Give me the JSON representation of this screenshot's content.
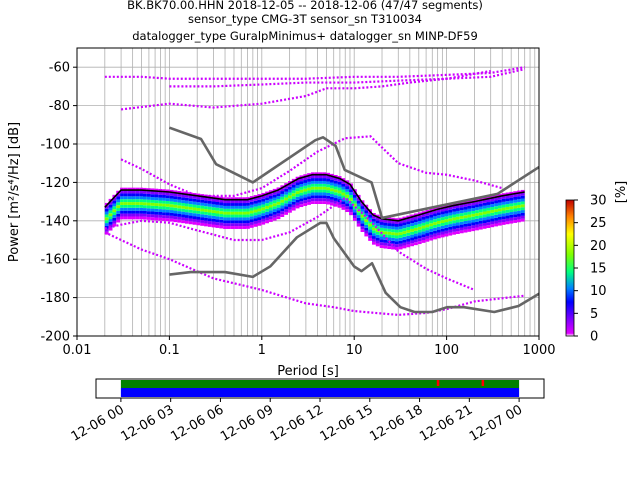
{
  "title_lines": [
    "BK.BK70.00.HHN   2018-12-05 -- 2018-12-06  (47/47 segments)",
    "sensor_type CMG-3T sensor_sn T310034",
    "datalogger_type GuralpMinimus+ datalogger_sn MINP-DF59"
  ],
  "colorbar": {
    "label": "[%]",
    "ticks": [
      "0",
      "5",
      "10",
      "15",
      "20",
      "25",
      "30"
    ],
    "range": [
      0,
      30
    ]
  },
  "chart_data": [
    {
      "type": "heatmap",
      "title": "BK.BK70.00.HHN   2018-12-05 -- 2018-12-06  (47/47 segments)",
      "xlabel": "Period [s]",
      "ylabel": "Power [m²/s⁴/Hz] [dB]",
      "xscale": "log",
      "xlim": [
        0.01,
        1000
      ],
      "ylim": [
        -200,
        -50
      ],
      "x_tick_labels": [
        "0.01",
        "0.1",
        "1",
        "10",
        "100",
        "1000"
      ],
      "y_tick_labels": [
        "-60",
        "-80",
        "-100",
        "-120",
        "-140",
        "-160",
        "-180",
        "-200"
      ],
      "y_ticks": [
        -60,
        -80,
        -100,
        -120,
        -140,
        -160,
        -180,
        -200
      ],
      "x_ticks": [
        0.01,
        0.1,
        1,
        10,
        100,
        1000
      ],
      "grid": true,
      "colormap": "pqlx",
      "series": [
        {
          "role": "mean",
          "color": "#000000",
          "x": [
            0.02,
            0.03,
            0.05,
            0.1,
            0.2,
            0.4,
            0.7,
            1.0,
            1.5,
            2.5,
            3.5,
            5,
            7,
            9,
            12,
            16,
            20,
            30,
            50,
            80,
            120,
            200,
            400,
            700
          ],
          "y": [
            -133,
            -124,
            -124,
            -125,
            -127,
            -129,
            -129,
            -127,
            -124,
            -118,
            -116,
            -116,
            -118,
            -121,
            -130,
            -137,
            -139,
            -140,
            -137,
            -134,
            -132,
            -130,
            -127,
            -125
          ]
        },
        {
          "role": "new-high-noise-model",
          "color": "#666666",
          "x": [
            0.1,
            0.22,
            0.32,
            0.8,
            3.8,
            4.6,
            6.3,
            7.9,
            15.4,
            20,
            354.8,
            1000
          ],
          "y": [
            -91.5,
            -97.4,
            -110.5,
            -120,
            -98,
            -96.5,
            -101,
            -113.5,
            -120,
            -138.5,
            -126,
            -112
          ]
        },
        {
          "role": "new-low-noise-model",
          "color": "#666666",
          "x": [
            0.1,
            0.17,
            0.4,
            0.8,
            1.24,
            2.4,
            4.3,
            5.0,
            6.0,
            10.0,
            12.0,
            15.6,
            21.9,
            31.6,
            45,
            70,
            101,
            154,
            328,
            600,
            1000
          ],
          "y": [
            -168,
            -166.7,
            -166.7,
            -169.2,
            -163.7,
            -148.6,
            -141.1,
            -141.1,
            -149,
            -163.8,
            -166.2,
            -162.1,
            -177.5,
            -185,
            -187.5,
            -187.5,
            -185,
            -185,
            -187.5,
            -184.4,
            -178
          ]
        }
      ],
      "percentile_bands": [
        {
          "color": "#cc00ff",
          "x": [
            0.02,
            0.03,
            0.05,
            0.1,
            0.3,
            1,
            3,
            10,
            30,
            100,
            300,
            700
          ],
          "y": [
            -65,
            -65,
            -65,
            -66,
            -66,
            -66,
            -66,
            -65,
            -65,
            -64,
            -63,
            -60
          ]
        },
        {
          "color": "#cc00ff",
          "x": [
            0.1,
            0.3,
            1,
            3,
            10,
            30,
            100,
            300,
            700
          ],
          "y": [
            -70,
            -70,
            -69,
            -68,
            -68,
            -67,
            -66,
            -65,
            -61
          ]
        },
        {
          "color": "#cc00ff",
          "x": [
            0.03,
            0.1,
            0.3,
            1,
            3,
            5,
            10,
            20,
            40,
            100,
            300
          ],
          "y": [
            -82,
            -79,
            -81,
            -79,
            -75,
            -71,
            -71,
            -70,
            -68,
            -66,
            -62
          ]
        },
        {
          "color": "#cc00ff",
          "x": [
            0.02,
            0.03,
            0.05,
            0.1,
            0.3,
            1,
            3,
            6,
            10,
            17,
            30,
            60,
            100,
            200,
            700
          ],
          "y": [
            -146,
            -150,
            -155,
            -160,
            -170,
            -176,
            -183,
            -185,
            -187,
            -188,
            -189,
            -188,
            -186,
            -182,
            -179
          ]
        },
        {
          "color": "#cc00ff",
          "x": [
            0.02,
            0.03,
            0.05,
            0.1,
            0.2,
            0.5,
            1,
            2,
            4,
            8,
            15,
            30,
            60,
            100,
            200
          ],
          "y": [
            -144,
            -142,
            -140,
            -141,
            -145,
            -150,
            -150,
            -146,
            -138,
            -128,
            -140,
            -156,
            -165,
            -170,
            -176
          ]
        },
        {
          "color": "#cc00ff",
          "x": [
            0.03,
            0.05,
            0.1,
            0.2,
            0.5,
            1,
            2,
            4,
            8,
            15,
            30,
            60,
            100,
            200,
            400
          ],
          "y": [
            -108,
            -113,
            -121,
            -127,
            -127,
            -123,
            -114,
            -104,
            -97,
            -96,
            -110,
            -115,
            -116,
            -119,
            -123
          ]
        }
      ]
    },
    {
      "type": "timeline",
      "x_tick_labels": [
        "12-06 00",
        "12-06 03",
        "12-06 06",
        "12-06 09",
        "12-06 12",
        "12-06 15",
        "12-06 18",
        "12-06 21",
        "12-07 00"
      ],
      "x_range_hours": [
        -1.5,
        25.5
      ],
      "data_range_hours": [
        0,
        24
      ],
      "top_band_color": "#008000",
      "bottom_band_color": "#0000ff",
      "marks": [
        {
          "hour": 19.1,
          "color": "#ff0000"
        },
        {
          "hour": 21.8,
          "color": "#ff0000"
        }
      ]
    }
  ]
}
